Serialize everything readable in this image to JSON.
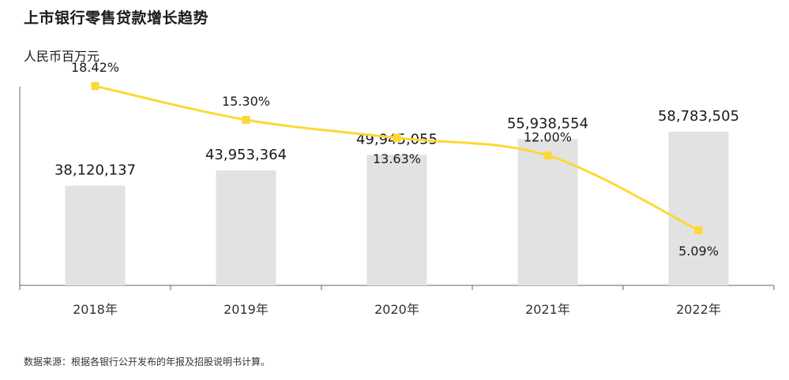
{
  "title": "上市银行零售贷款增长趋势",
  "unit": "人民币百万元",
  "source": "数据来源：根据各银行公开发布的年报及招股说明书计算。",
  "colors": {
    "bar": "#e2e2e2",
    "line": "#fdd835",
    "axis": "#666666"
  },
  "chart_data": {
    "type": "bar",
    "categories": [
      "2018年",
      "2019年",
      "2020年",
      "2021年",
      "2022年"
    ],
    "series": [
      {
        "type": "bar",
        "values": [
          38120137,
          43953364,
          49945055,
          55938554,
          58783505
        ],
        "labels": [
          "38,120,137",
          "43,953,364",
          "49,945,055",
          "55,938,554",
          "58,783,505"
        ]
      },
      {
        "type": "line",
        "values": [
          18.42,
          15.3,
          13.63,
          12.0,
          5.09
        ],
        "labels": [
          "18.42%",
          "15.30%",
          "13.63%",
          "12.00%",
          "5.09%"
        ]
      }
    ],
    "bar_ylim": [
      0,
      82000000
    ],
    "line_ylim": [
      0,
      22
    ],
    "grid": false,
    "legend": "none"
  }
}
